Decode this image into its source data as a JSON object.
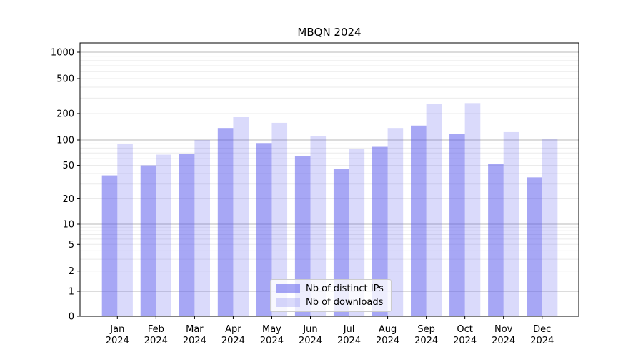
{
  "figure": {
    "title": "MBQN 2024"
  },
  "chart_data": {
    "type": "bar",
    "title": "MBQN 2024",
    "categories": [
      "Jan",
      "Feb",
      "Mar",
      "Apr",
      "May",
      "Jun",
      "Jul",
      "Aug",
      "Sep",
      "Oct",
      "Nov",
      "Dec"
    ],
    "year": "2024",
    "series": [
      {
        "name": "Nb of distinct IPs",
        "color": "rgba(80,80,235,0.5)",
        "values": [
          38,
          50,
          69,
          137,
          92,
          64,
          45,
          83,
          146,
          117,
          52,
          36
        ]
      },
      {
        "name": "Nb of downloads",
        "color": "rgba(80,80,235,0.21)",
        "values": [
          90,
          67,
          100,
          182,
          157,
          110,
          78,
          137,
          255,
          263,
          123,
          103
        ]
      }
    ],
    "xlabel": "",
    "ylabel": "",
    "yticks": [
      1000,
      500,
      200,
      100,
      50,
      20,
      10,
      5,
      2,
      1,
      0
    ],
    "yaxis": {
      "scale": "symlog",
      "min": 0,
      "max": 1000,
      "grid": true,
      "major_grid_values": [
        1,
        10,
        100,
        1000
      ]
    },
    "legend_position": "lower center",
    "colors": {
      "major_grid": "#b8b8b8",
      "minor_grid": "#ebebeb",
      "spine": "#000000",
      "text": "#000000"
    }
  }
}
